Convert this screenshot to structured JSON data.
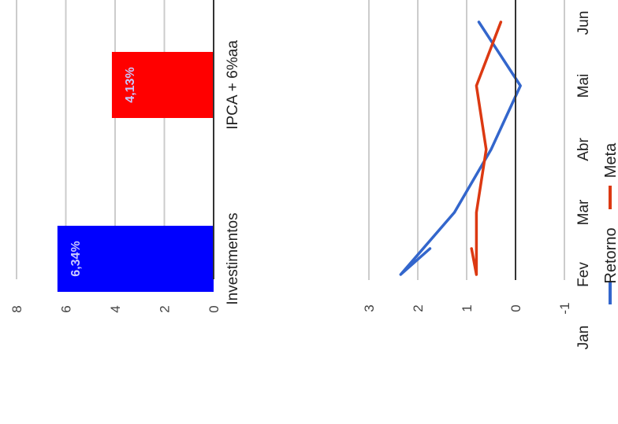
{
  "chart_data": [
    {
      "type": "bar",
      "orientation": "horizontal",
      "categories": [
        "Investimentos",
        "IPCA + 6%aa"
      ],
      "values": [
        6.34,
        4.13
      ],
      "data_labels": [
        "6,34%",
        "4,13%"
      ],
      "colors": [
        "#0000ff",
        "#ff0000"
      ],
      "label_color": "#c8c8ff",
      "xlim": [
        0,
        8
      ],
      "x_ticks": [
        "0",
        "2",
        "4",
        "6",
        "8"
      ],
      "grid": true,
      "rotation": "90deg counter-clockwise"
    },
    {
      "type": "line",
      "categories": [
        "Jan",
        "Fev",
        "Mar",
        "Abr",
        "Mai",
        "Jun"
      ],
      "series": [
        {
          "name": "Retorno",
          "color": "#3366cc",
          "values": [
            1.75,
            2.35,
            1.25,
            0.5,
            -0.1,
            0.75
          ]
        },
        {
          "name": "Meta",
          "color": "#dc3912",
          "values": [
            0.9,
            0.8,
            0.8,
            0.6,
            0.8,
            0.3
          ]
        }
      ],
      "ylim": [
        -1,
        3
      ],
      "y_ticks": [
        "-1",
        "0",
        "1",
        "2",
        "3"
      ],
      "grid": true,
      "legend_position": "bottom",
      "rotation": "90deg counter-clockwise"
    }
  ]
}
